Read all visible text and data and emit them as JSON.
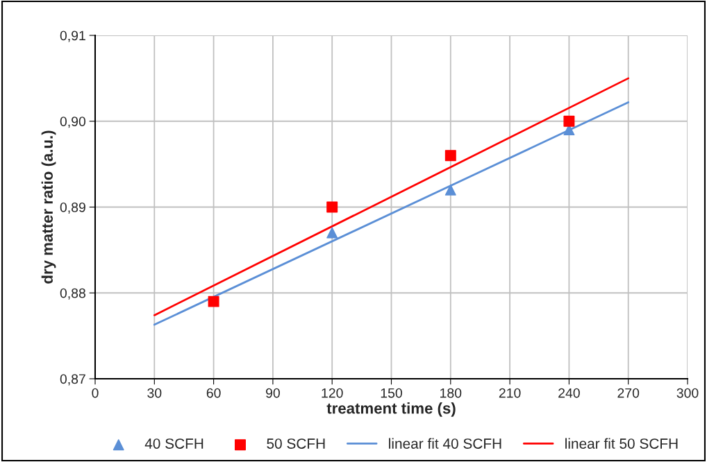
{
  "chart_data": {
    "type": "scatter",
    "xlabel": "treatment time (s)",
    "ylabel": "dry matter ratio (a.u.)",
    "xlim": [
      0,
      300
    ],
    "xticks": [
      0,
      30,
      60,
      90,
      120,
      150,
      180,
      210,
      240,
      270,
      300
    ],
    "ylim": [
      0.87,
      0.91
    ],
    "yticks": [
      {
        "value": 0.87,
        "label": "0,87"
      },
      {
        "value": 0.88,
        "label": "0,88"
      },
      {
        "value": 0.89,
        "label": "0,89"
      },
      {
        "value": 0.9,
        "label": "0,90"
      },
      {
        "value": 0.91,
        "label": "0,91"
      }
    ],
    "grid": true,
    "legend": "bottom",
    "series": [
      {
        "name": "40 SCFH",
        "marker": "triangle",
        "color": "#5b8fd6",
        "x": [
          120,
          180,
          240
        ],
        "values": [
          0.887,
          0.892,
          0.899
        ]
      },
      {
        "name": "50 SCFH",
        "marker": "square",
        "color": "#ff0000",
        "x": [
          60,
          120,
          180,
          240
        ],
        "values": [
          0.879,
          0.89,
          0.896,
          0.9
        ]
      },
      {
        "name": "linear fit 40 SCFH",
        "type": "line",
        "color": "#5b8fd6",
        "x": [
          30,
          270
        ],
        "values": [
          0.8763,
          0.9022
        ]
      },
      {
        "name": "linear fit 50 SCFH",
        "type": "line",
        "color": "#ff0000",
        "x": [
          30,
          270
        ],
        "values": [
          0.8774,
          0.905
        ]
      }
    ]
  }
}
